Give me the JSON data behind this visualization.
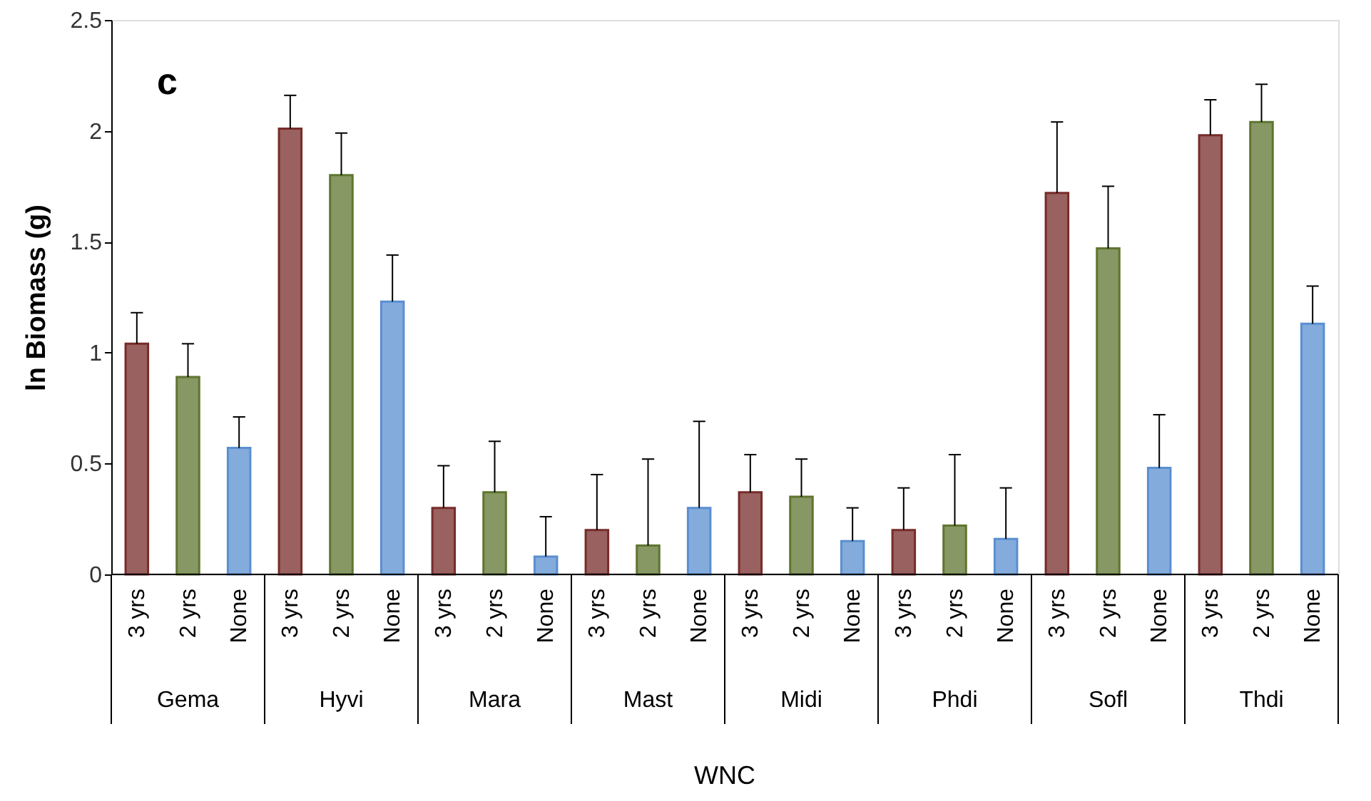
{
  "chart_data": {
    "type": "bar",
    "xlabel": "WNC",
    "ylabel": "ln Biomass (g)",
    "annotations": [
      "c"
    ],
    "categories": [
      "Gema",
      "Hyvi",
      "Mara",
      "Mast",
      "Midi",
      "Phdi",
      "Sofl",
      "Thdi"
    ],
    "series": [
      {
        "name": "3 yrs",
        "color": "#772c2a",
        "values": [
          1.04,
          2.01,
          0.3,
          0.2,
          0.37,
          0.2,
          1.72,
          1.98
        ],
        "errors": [
          [
            1.04,
            1.18
          ],
          [
            2.01,
            2.16
          ],
          [
            0.3,
            0.49
          ],
          [
            0.2,
            0.45
          ],
          [
            0.37,
            0.54
          ],
          [
            0.2,
            0.39
          ],
          [
            1.72,
            2.04
          ],
          [
            1.98,
            2.14
          ]
        ]
      },
      {
        "name": "2 yrs",
        "color": "#5f7530",
        "values": [
          0.89,
          1.8,
          0.37,
          0.13,
          0.35,
          0.22,
          1.47,
          2.04
        ],
        "errors": [
          [
            0.89,
            1.04
          ],
          [
            1.8,
            1.99
          ],
          [
            0.37,
            0.6
          ],
          [
            0.13,
            0.52
          ],
          [
            0.35,
            0.52
          ],
          [
            0.22,
            0.54
          ],
          [
            1.47,
            1.75
          ],
          [
            2.04,
            2.21
          ]
        ]
      },
      {
        "name": "None",
        "color": "#5a8fd0",
        "values": [
          0.57,
          1.23,
          0.08,
          0.3,
          0.15,
          0.16,
          0.48,
          1.13
        ],
        "errors": [
          [
            0.57,
            0.71
          ],
          [
            1.23,
            1.44
          ],
          [
            0.08,
            0.26
          ],
          [
            0.3,
            0.69
          ],
          [
            0.15,
            0.3
          ],
          [
            0.16,
            0.39
          ],
          [
            0.48,
            0.72
          ],
          [
            1.13,
            1.3
          ]
        ]
      }
    ],
    "ylim": [
      0,
      2.5
    ],
    "yticks": [
      0,
      0.5,
      1,
      1.5,
      2,
      2.5
    ],
    "grid": false
  }
}
